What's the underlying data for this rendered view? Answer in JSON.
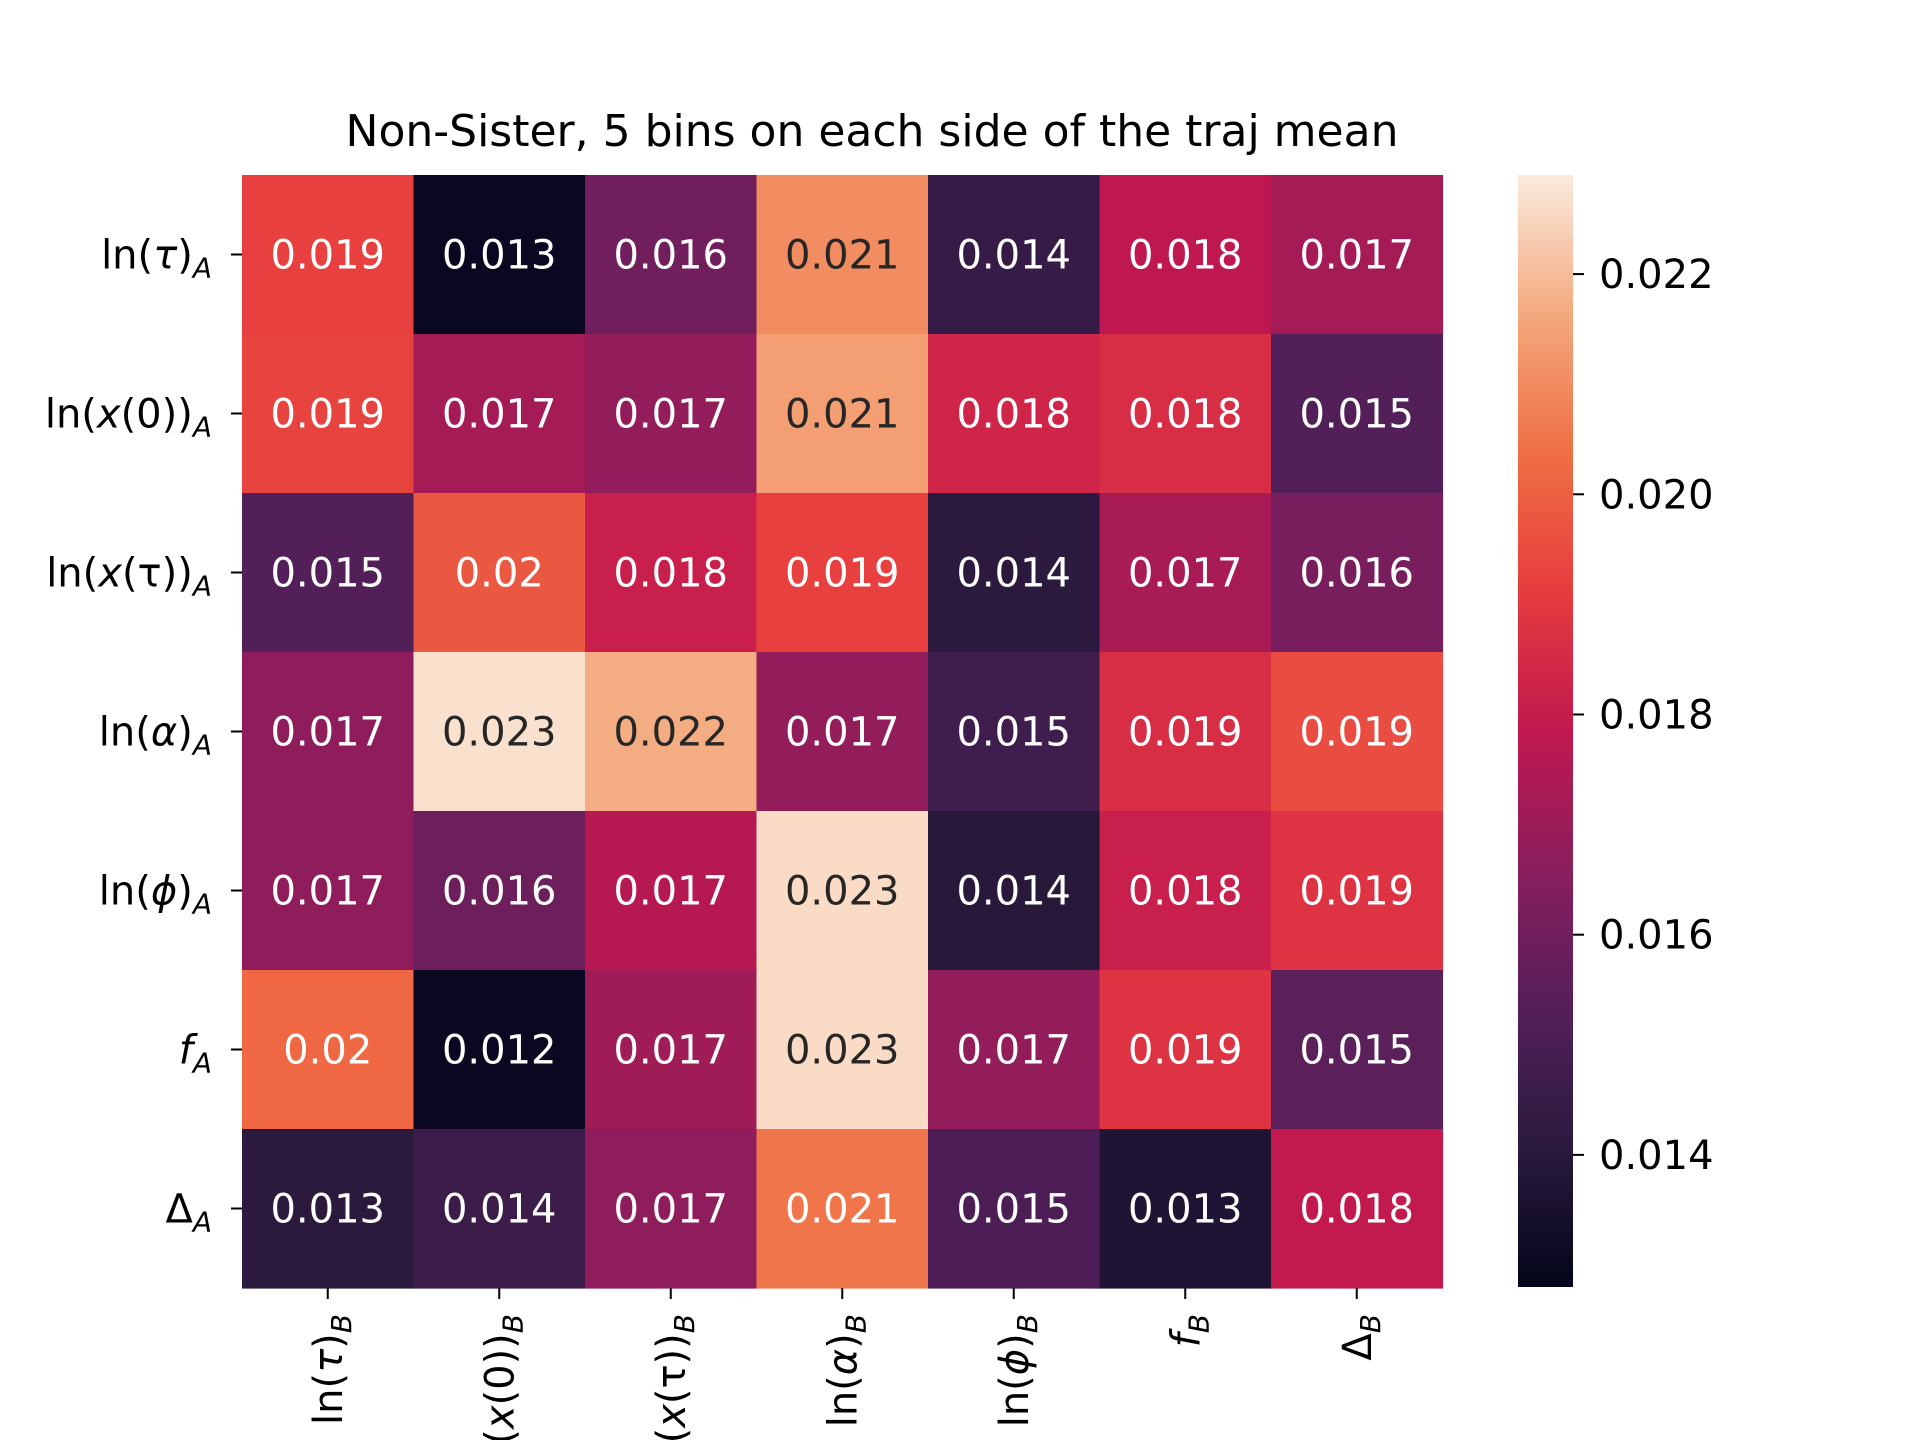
{
  "chart_data": {
    "type": "heatmap",
    "title": "Non-Sister, 5 bins on each side of the traj mean",
    "y_tick_labels": [
      {
        "base": "ln(",
        "sym": "τ",
        "close": ")",
        "sub": "A"
      },
      {
        "base": "ln(",
        "sym": "x",
        "close": "(0))",
        "sub": "A"
      },
      {
        "base": "ln(",
        "sym": "x",
        "close": "(τ))",
        "sub": "A"
      },
      {
        "base": "ln(",
        "sym": "α",
        "close": ")",
        "sub": "A"
      },
      {
        "base": "ln(",
        "sym": "ϕ",
        "close": ")",
        "sub": "A"
      },
      {
        "base": "",
        "sym": "f",
        "close": "",
        "sub": "A"
      },
      {
        "base": "Δ",
        "sym": "",
        "close": "",
        "sub": "A"
      }
    ],
    "x_tick_labels": [
      {
        "base": "ln(",
        "sym": "τ",
        "close": ")",
        "sub": "B"
      },
      {
        "base": "ln(",
        "sym": "x",
        "close": "(0))",
        "sub": "B"
      },
      {
        "base": "ln(",
        "sym": "x",
        "close": "(τ))",
        "sub": "B"
      },
      {
        "base": "ln(",
        "sym": "α",
        "close": ")",
        "sub": "B"
      },
      {
        "base": "ln(",
        "sym": "ϕ",
        "close": ")",
        "sub": "B"
      },
      {
        "base": "",
        "sym": "f",
        "close": "",
        "sub": "B"
      },
      {
        "base": "Δ",
        "sym": "",
        "close": "",
        "sub": "B"
      }
    ],
    "values": [
      [
        0.0192,
        0.013,
        0.016,
        0.021,
        0.0144,
        0.0178,
        0.0172
      ],
      [
        0.0193,
        0.0172,
        0.0168,
        0.0214,
        0.0183,
        0.0186,
        0.0153
      ],
      [
        0.0153,
        0.0198,
        0.0181,
        0.0192,
        0.0141,
        0.0173,
        0.0162
      ],
      [
        0.0167,
        0.0227,
        0.0217,
        0.0168,
        0.0147,
        0.0186,
        0.0195
      ],
      [
        0.0167,
        0.0159,
        0.0176,
        0.0226,
        0.014,
        0.0181,
        0.0188
      ],
      [
        0.0202,
        0.013,
        0.0171,
        0.0226,
        0.0168,
        0.0188,
        0.0155
      ],
      [
        0.0141,
        0.0146,
        0.0167,
        0.0205,
        0.0151,
        0.0137,
        0.0179
      ]
    ],
    "annotations": [
      [
        "0.019",
        "0.013",
        "0.016",
        "0.021",
        "0.014",
        "0.018",
        "0.017"
      ],
      [
        "0.019",
        "0.017",
        "0.017",
        "0.021",
        "0.018",
        "0.018",
        "0.015"
      ],
      [
        "0.015",
        "0.02",
        "0.018",
        "0.019",
        "0.014",
        "0.017",
        "0.016"
      ],
      [
        "0.017",
        "0.023",
        "0.022",
        "0.017",
        "0.015",
        "0.019",
        "0.019"
      ],
      [
        "0.017",
        "0.016",
        "0.017",
        "0.023",
        "0.014",
        "0.018",
        "0.019"
      ],
      [
        "0.02",
        "0.012",
        "0.017",
        "0.023",
        "0.017",
        "0.019",
        "0.015"
      ],
      [
        "0.013",
        "0.014",
        "0.017",
        "0.021",
        "0.015",
        "0.013",
        "0.018"
      ]
    ],
    "vmin": 0.0128,
    "vmax": 0.0229,
    "colormap": "rocket",
    "colorbar_ticks": [
      "0.014",
      "0.016",
      "0.018",
      "0.020",
      "0.022"
    ],
    "colorbar_tick_values": [
      0.014,
      0.016,
      0.018,
      0.02,
      0.022
    ],
    "grid": false,
    "colorbar_position": "right"
  }
}
